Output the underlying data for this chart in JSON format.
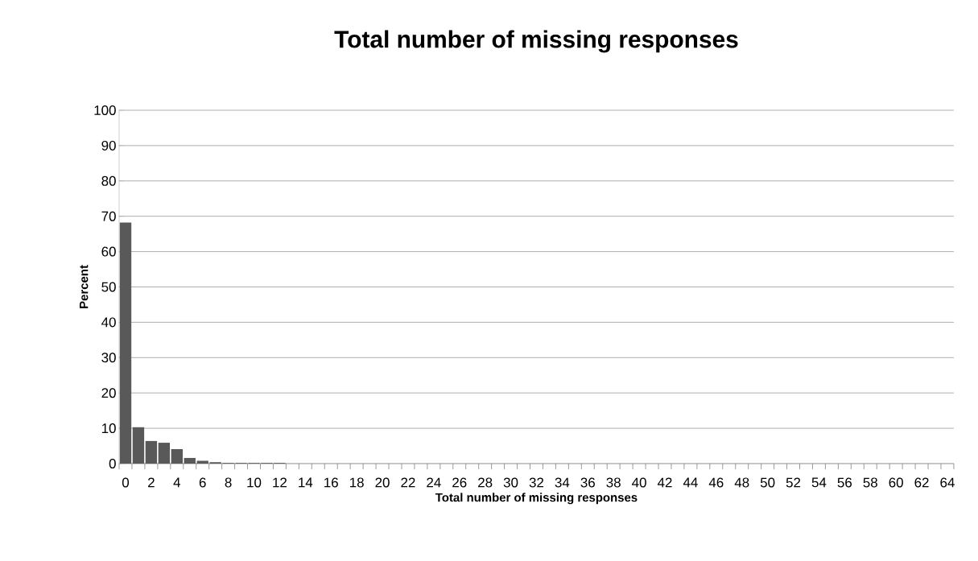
{
  "chart_data": {
    "type": "bar",
    "title": "Total number of missing responses",
    "xlabel": "Total number of missing responses",
    "ylabel": "Percent",
    "categories": [
      "0",
      null,
      "2",
      null,
      "4",
      null,
      "6",
      null,
      "8",
      null,
      "10",
      null,
      "12",
      null,
      "14",
      null,
      "16",
      null,
      "18",
      null,
      "20",
      null,
      "22",
      null,
      "24",
      null,
      "26",
      null,
      "28",
      null,
      "30",
      null,
      "32",
      null,
      "34",
      null,
      "36",
      null,
      "38",
      null,
      "40",
      null,
      "42",
      null,
      "44",
      null,
      "46",
      null,
      "48",
      null,
      "50",
      null,
      "52",
      null,
      "54",
      null,
      "56",
      null,
      "58",
      null,
      "60",
      null,
      "62",
      null,
      "64"
    ],
    "values": [
      68.2,
      10.3,
      6.4,
      5.9,
      4.1,
      1.6,
      0.8,
      0.4,
      0.2,
      0.2,
      0.2,
      0.2,
      0.2,
      0,
      0,
      0,
      0,
      0,
      0,
      0,
      0,
      0,
      0,
      0,
      0,
      0,
      0,
      0,
      0,
      0,
      0,
      0,
      0,
      0,
      0,
      0,
      0,
      0,
      0,
      0,
      0,
      0,
      0,
      0,
      0,
      0,
      0,
      0,
      0,
      0,
      0,
      0,
      0,
      0,
      0,
      0,
      0,
      0,
      0,
      0,
      0,
      0,
      0,
      0,
      0
    ],
    "color": "#595959",
    "ylim": [
      0,
      100
    ],
    "yticks": [
      0,
      10,
      20,
      30,
      40,
      50,
      60,
      70,
      80,
      90,
      100
    ],
    "grid": "y"
  }
}
